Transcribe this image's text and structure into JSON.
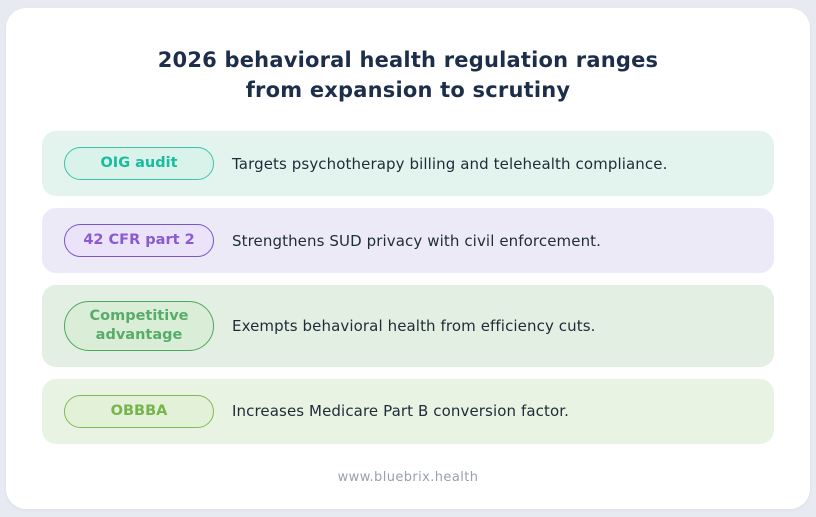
{
  "title": {
    "line1": "2026 behavioral health regulation ranges",
    "line2": "from expansion to scrutiny",
    "color": "#1c2e49"
  },
  "rows": [
    {
      "badge": "OIG audit",
      "description": "Targets psychotherapy billing and telehealth compliance.",
      "colors": {
        "row_bg": "#e3f4ef",
        "pill_bg": "#d9f2ea",
        "pill_border": "#3ec3a6",
        "pill_text": "#18bc9f"
      }
    },
    {
      "badge": "42 CFR part 2",
      "description": "Strengthens SUD privacy with civil enforcement.",
      "colors": {
        "row_bg": "#edeaf8",
        "pill_bg": "#eae3fa",
        "pill_border": "#7a55cc",
        "pill_text": "#8a5ad1"
      }
    },
    {
      "badge": "Competitive advantage",
      "description": "Exempts behavioral health from efficiency cuts.",
      "colors": {
        "row_bg": "#e2efe2",
        "pill_bg": "#d9edd7",
        "pill_border": "#4da95f",
        "pill_text": "#57ad68"
      }
    },
    {
      "badge": "OBBBA",
      "description": "Increases Medicare Part B conversion factor.",
      "colors": {
        "row_bg": "#e9f3e3",
        "pill_bg": "#e3f1d8",
        "pill_border": "#80bb52",
        "pill_text": "#76b44c"
      }
    }
  ],
  "footer": {
    "url": "www.bluebrix.health",
    "color": "#9aa1ab"
  }
}
